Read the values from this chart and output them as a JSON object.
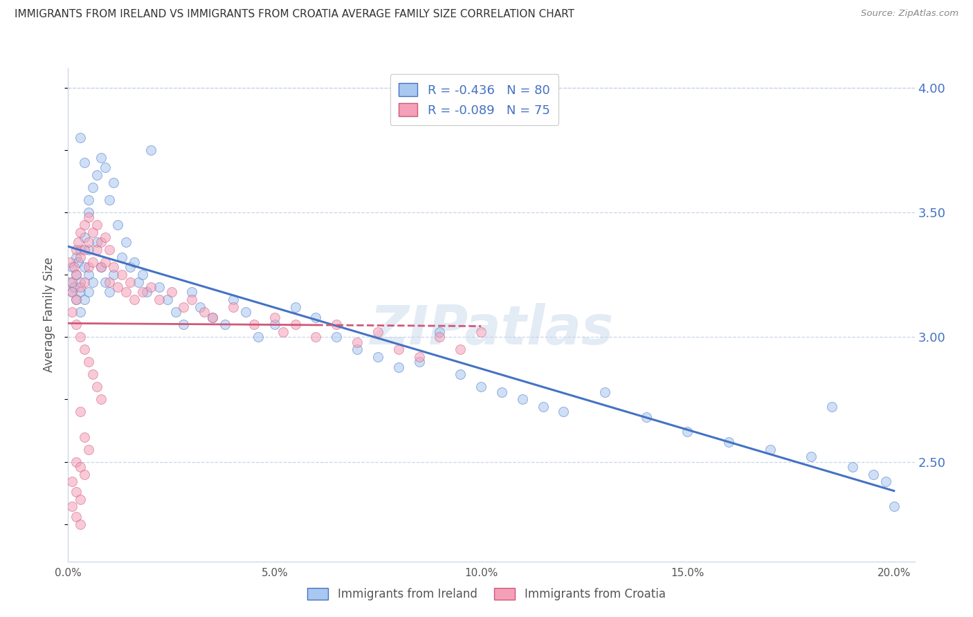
{
  "title": "IMMIGRANTS FROM IRELAND VS IMMIGRANTS FROM CROATIA AVERAGE FAMILY SIZE CORRELATION CHART",
  "source": "Source: ZipAtlas.com",
  "ylabel": "Average Family Size",
  "x_min": 0.0,
  "x_max": 0.205,
  "y_min": 2.1,
  "y_max": 4.08,
  "right_yticks": [
    2.5,
    3.0,
    3.5,
    4.0
  ],
  "right_yticklabels": [
    "2.50",
    "3.00",
    "3.50",
    "4.00"
  ],
  "x_ticklabels": [
    "0.0%",
    "5.0%",
    "10.0%",
    "15.0%",
    "20.0%"
  ],
  "x_ticks": [
    0.0,
    0.05,
    0.1,
    0.15,
    0.2
  ],
  "color_ireland": "#a8c8f0",
  "color_croatia": "#f4a0b8",
  "line_ireland": "#4472c4",
  "line_croatia": "#d05878",
  "legend_r_ireland": "-0.436",
  "legend_n_ireland": "80",
  "legend_r_croatia": "-0.089",
  "legend_n_croatia": "75",
  "watermark": "ZIPatlas",
  "ireland_x": [
    0.0005,
    0.001,
    0.001,
    0.0015,
    0.002,
    0.002,
    0.002,
    0.0025,
    0.003,
    0.003,
    0.003,
    0.003,
    0.004,
    0.004,
    0.004,
    0.005,
    0.005,
    0.005,
    0.005,
    0.006,
    0.006,
    0.007,
    0.007,
    0.008,
    0.008,
    0.009,
    0.009,
    0.01,
    0.01,
    0.011,
    0.011,
    0.012,
    0.013,
    0.014,
    0.015,
    0.016,
    0.017,
    0.018,
    0.019,
    0.02,
    0.022,
    0.024,
    0.026,
    0.028,
    0.03,
    0.032,
    0.035,
    0.038,
    0.04,
    0.043,
    0.046,
    0.05,
    0.055,
    0.06,
    0.065,
    0.07,
    0.075,
    0.08,
    0.085,
    0.09,
    0.095,
    0.1,
    0.105,
    0.11,
    0.115,
    0.12,
    0.13,
    0.14,
    0.15,
    0.16,
    0.17,
    0.18,
    0.185,
    0.19,
    0.195,
    0.198,
    0.2,
    0.003,
    0.004,
    0.005
  ],
  "ireland_y": [
    3.22,
    3.18,
    3.28,
    3.2,
    3.32,
    3.15,
    3.25,
    3.3,
    3.35,
    3.22,
    3.18,
    3.1,
    3.4,
    3.28,
    3.15,
    3.5,
    3.35,
    3.25,
    3.18,
    3.6,
    3.22,
    3.65,
    3.38,
    3.72,
    3.28,
    3.68,
    3.22,
    3.55,
    3.18,
    3.62,
    3.25,
    3.45,
    3.32,
    3.38,
    3.28,
    3.3,
    3.22,
    3.25,
    3.18,
    3.75,
    3.2,
    3.15,
    3.1,
    3.05,
    3.18,
    3.12,
    3.08,
    3.05,
    3.15,
    3.1,
    3.0,
    3.05,
    3.12,
    3.08,
    3.0,
    2.95,
    2.92,
    2.88,
    2.9,
    3.02,
    2.85,
    2.8,
    2.78,
    2.75,
    2.72,
    2.7,
    2.78,
    2.68,
    2.62,
    2.58,
    2.55,
    2.52,
    2.72,
    2.48,
    2.45,
    2.42,
    2.32,
    3.8,
    3.7,
    3.55
  ],
  "croatia_x": [
    0.0005,
    0.001,
    0.001,
    0.0015,
    0.002,
    0.002,
    0.002,
    0.0025,
    0.003,
    0.003,
    0.003,
    0.004,
    0.004,
    0.004,
    0.005,
    0.005,
    0.005,
    0.006,
    0.006,
    0.007,
    0.007,
    0.008,
    0.008,
    0.009,
    0.009,
    0.01,
    0.01,
    0.011,
    0.012,
    0.013,
    0.014,
    0.015,
    0.016,
    0.018,
    0.02,
    0.022,
    0.025,
    0.028,
    0.03,
    0.033,
    0.035,
    0.04,
    0.045,
    0.05,
    0.052,
    0.055,
    0.06,
    0.065,
    0.07,
    0.075,
    0.08,
    0.085,
    0.09,
    0.095,
    0.1,
    0.001,
    0.002,
    0.003,
    0.004,
    0.005,
    0.006,
    0.007,
    0.008,
    0.003,
    0.004,
    0.005,
    0.002,
    0.003,
    0.004,
    0.001,
    0.002,
    0.003,
    0.001,
    0.002,
    0.003
  ],
  "croatia_y": [
    3.3,
    3.22,
    3.18,
    3.28,
    3.35,
    3.25,
    3.15,
    3.38,
    3.42,
    3.32,
    3.2,
    3.45,
    3.35,
    3.22,
    3.48,
    3.38,
    3.28,
    3.42,
    3.3,
    3.45,
    3.35,
    3.38,
    3.28,
    3.4,
    3.3,
    3.35,
    3.22,
    3.28,
    3.2,
    3.25,
    3.18,
    3.22,
    3.15,
    3.18,
    3.2,
    3.15,
    3.18,
    3.12,
    3.15,
    3.1,
    3.08,
    3.12,
    3.05,
    3.08,
    3.02,
    3.05,
    3.0,
    3.05,
    2.98,
    3.02,
    2.95,
    2.92,
    3.0,
    2.95,
    3.02,
    3.1,
    3.05,
    3.0,
    2.95,
    2.9,
    2.85,
    2.8,
    2.75,
    2.7,
    2.6,
    2.55,
    2.5,
    2.48,
    2.45,
    2.42,
    2.38,
    2.35,
    2.32,
    2.28,
    2.25
  ],
  "grid_color": "#c8d4e8",
  "bg_color": "#ffffff",
  "title_color": "#333333",
  "right_axis_color": "#4472c4",
  "marker_size": 100,
  "marker_alpha": 0.55
}
